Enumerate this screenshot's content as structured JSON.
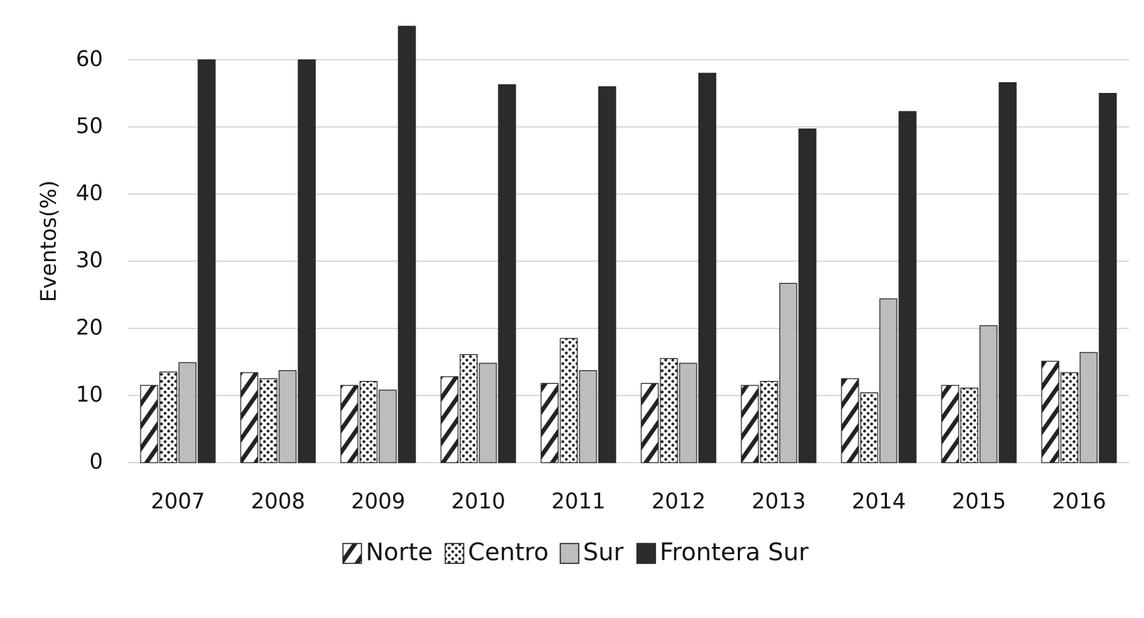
{
  "chart_data": {
    "type": "bar",
    "y_label": "Eventos(%)",
    "categories": [
      "2007",
      "2008",
      "2009",
      "2010",
      "2011",
      "2012",
      "2013",
      "2014",
      "2015",
      "2016"
    ],
    "series": [
      {
        "name": "Norte",
        "color": "#222222",
        "pattern": "hatch",
        "values": [
          11.5,
          13.4,
          11.5,
          12.8,
          11.8,
          11.8,
          11.5,
          12.5,
          11.5,
          15.1
        ]
      },
      {
        "name": "Centro",
        "color": "#222222",
        "pattern": "dots",
        "values": [
          13.5,
          12.5,
          12.1,
          16.1,
          18.5,
          15.5,
          12.1,
          10.4,
          11.1,
          13.4
        ]
      },
      {
        "name": "Sur",
        "color": "#bdbdbd",
        "pattern": "solid",
        "values": [
          14.9,
          13.7,
          10.8,
          14.8,
          13.7,
          14.8,
          26.7,
          24.4,
          20.4,
          16.4
        ]
      },
      {
        "name": "Frontera Sur",
        "color": "#2b2b2b",
        "pattern": "solid",
        "values": [
          60,
          60,
          65,
          56.3,
          56,
          58,
          49.7,
          52.3,
          56.6,
          55
        ]
      }
    ],
    "ylim": [
      0,
      65
    ],
    "yticks": [
      0,
      10,
      20,
      30,
      40,
      50,
      60
    ],
    "grid": true,
    "legend": "bottom"
  }
}
